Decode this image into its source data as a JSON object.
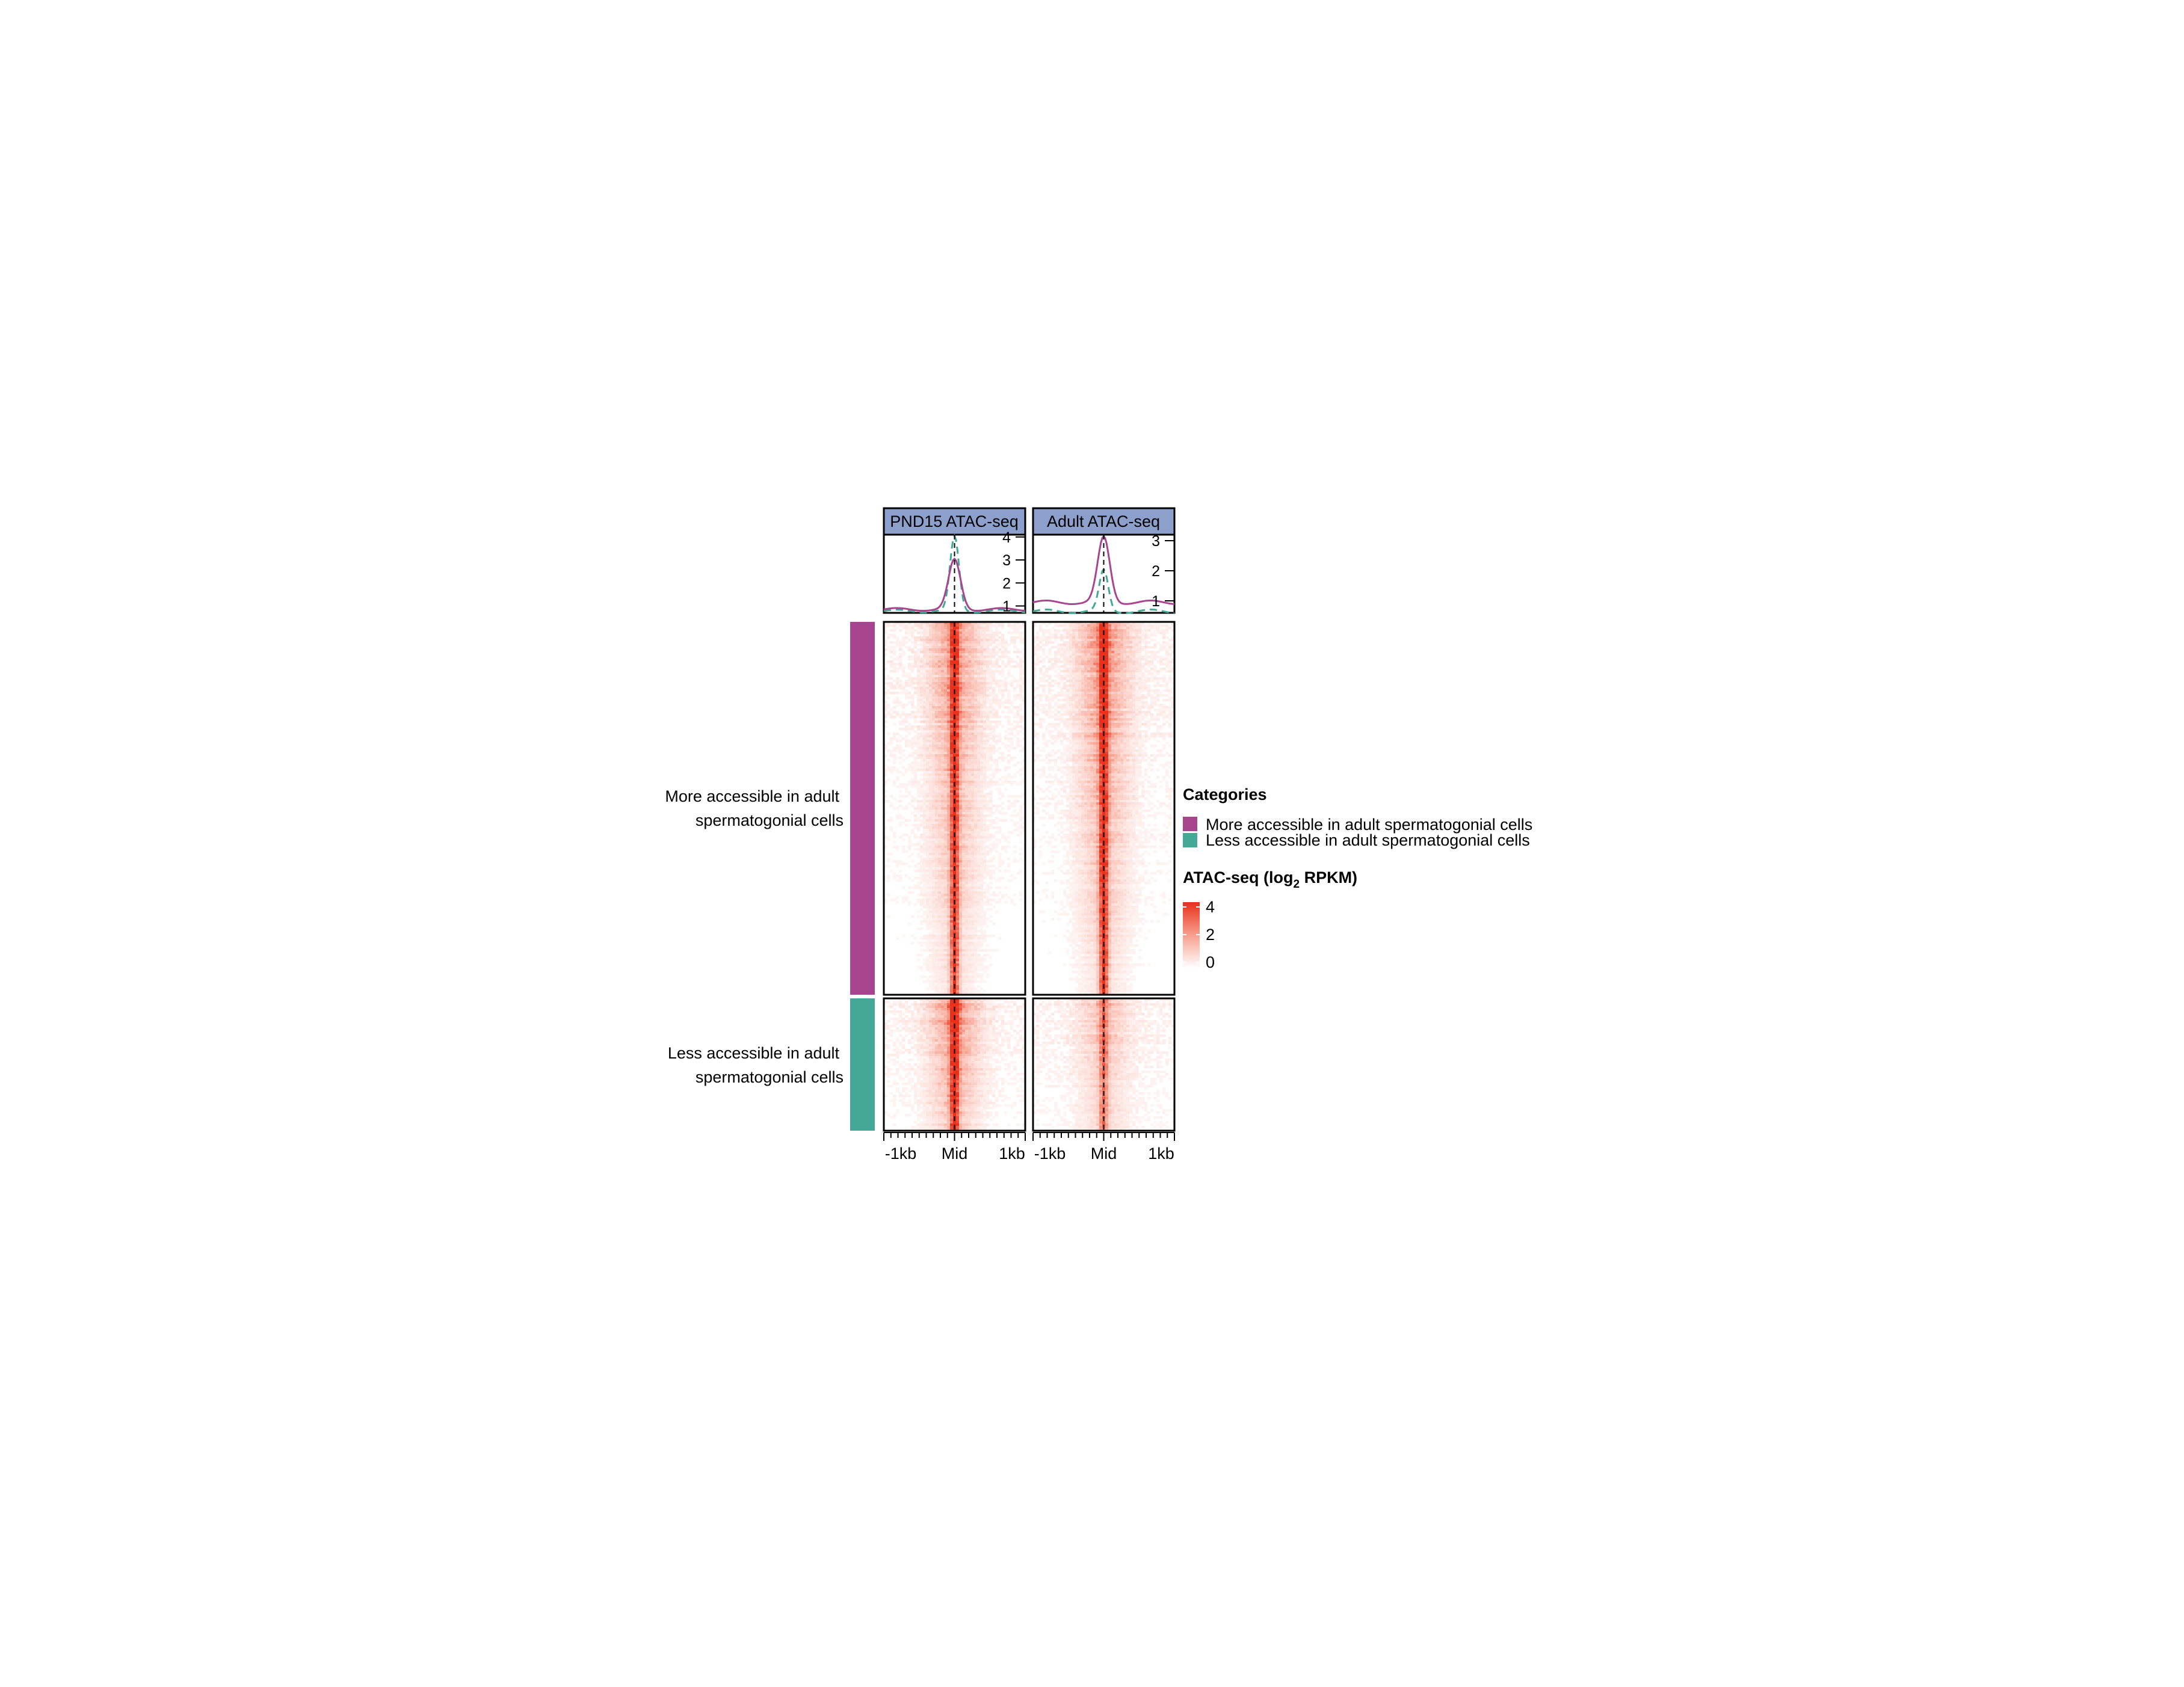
{
  "chart_data": {
    "type": "heatmap",
    "panels": [
      {
        "title": "PND15 ATAC-seq",
        "profile": {
          "yticks": [
            "4",
            "3",
            "2",
            "1"
          ],
          "ylim": [
            0.7,
            4.1
          ],
          "peaks": {
            "more": 3.0,
            "less": 4.0
          },
          "baselines": {
            "more": 0.85,
            "less": 0.78
          }
        },
        "center_intensity": {
          "more": 0.9,
          "less": 1.0
        }
      },
      {
        "title": "Adult ATAC-seq",
        "profile": {
          "yticks": [
            "3",
            "2",
            "1"
          ],
          "ylim": [
            0.6,
            3.2
          ],
          "peaks": {
            "more": 3.1,
            "less": 2.0
          },
          "baselines": {
            "more": 0.95,
            "less": 0.65
          }
        },
        "center_intensity": {
          "more": 1.0,
          "less": 0.55
        }
      }
    ],
    "x_ticklabels": [
      "-1kb",
      "Mid",
      "1kb"
    ],
    "groups": [
      {
        "label_lines": [
          "More accessible in adult",
          "spermatogonial cells"
        ],
        "color": "#A8458F"
      },
      {
        "label_lines": [
          "Less accessible in adult",
          "spermatogonial cells"
        ],
        "color": "#45A896"
      }
    ],
    "legend": {
      "categories_title": "Categories",
      "categories": [
        {
          "label": "More accessible in adult spermatogonial cells",
          "color": "#A8458F"
        },
        {
          "label": "Less accessible in adult spermatogonial cells",
          "color": "#45A896"
        }
      ],
      "scale_title_prefix": "ATAC-seq (log",
      "scale_title_sub": "2",
      "scale_title_suffix": " RPKM)",
      "scale_ticks": [
        "4",
        "2",
        "0"
      ],
      "scale_range": [
        0,
        4
      ],
      "scale_colors": [
        "#FFFFFF",
        "#F7A08E",
        "#E8301A"
      ]
    },
    "header_color": "#8DA0CB"
  }
}
